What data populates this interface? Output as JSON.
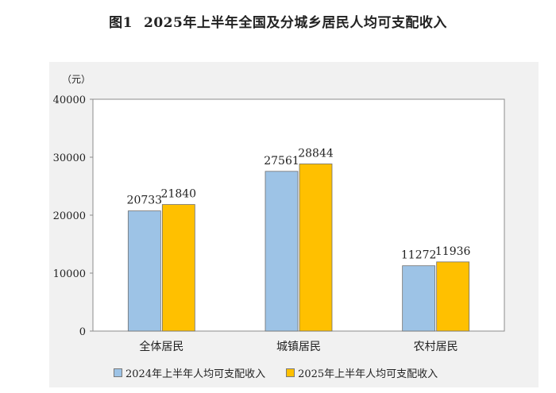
{
  "chart_data": {
    "type": "bar",
    "title_number": "图1",
    "title": "2025年上半年全国及分城乡居民人均可支配收入",
    "ylabel": "（元）",
    "xlabel": "",
    "ylim": [
      0,
      40000
    ],
    "yticks": [
      0,
      10000,
      20000,
      30000,
      40000
    ],
    "categories": [
      "全体居民",
      "城镇居民",
      "农村居民"
    ],
    "series": [
      {
        "name": "2024年上半年人均可支配收入",
        "values": [
          20733,
          27561,
          11272
        ],
        "color": "#9dc3e6"
      },
      {
        "name": "2025年上半年人均可支配收入",
        "values": [
          21840,
          28844,
          11936
        ],
        "color": "#ffc000"
      }
    ],
    "grid": false,
    "legend_position": "bottom"
  }
}
